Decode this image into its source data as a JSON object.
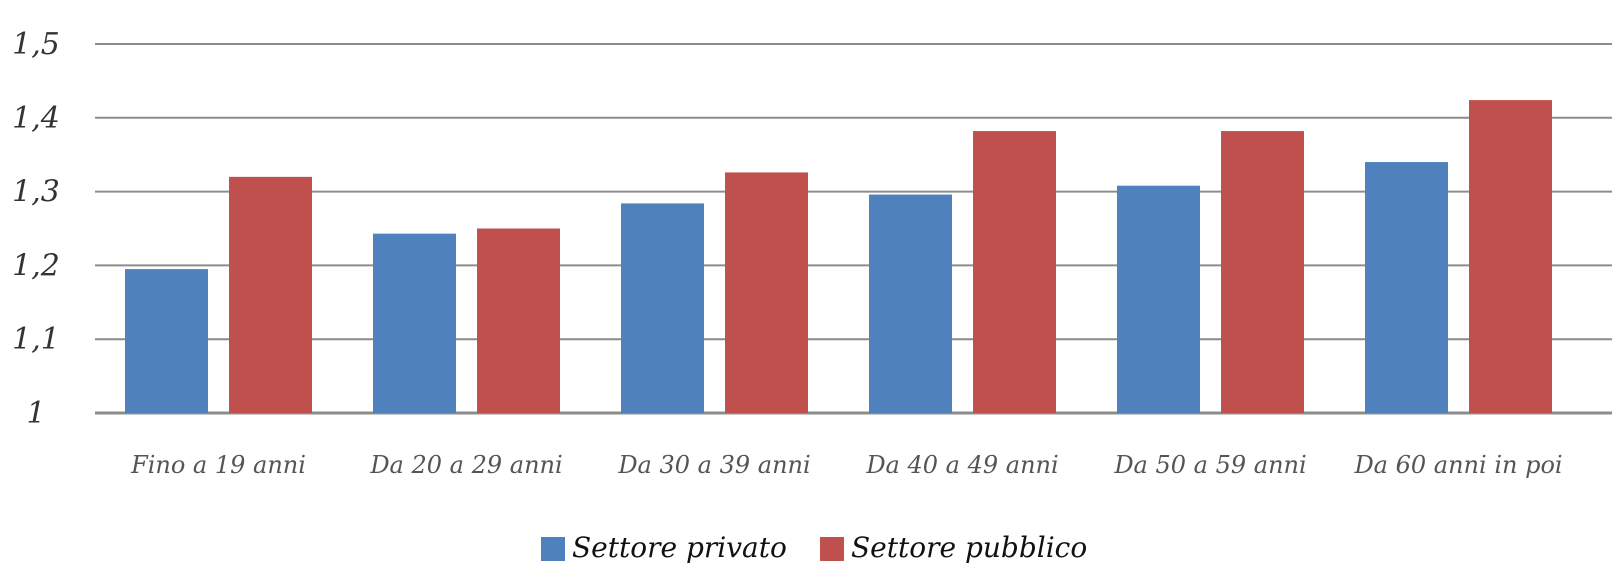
{
  "chart_data": {
    "type": "bar",
    "categories": [
      "Fino a 19 anni",
      "Da 20 a 29 anni",
      "Da 30 a 39 anni",
      "Da 40 a 49 anni",
      "Da 50 a 59 anni",
      "Da 60 anni in poi"
    ],
    "series": [
      {
        "name": "Settore privato",
        "color": "#4f81bd",
        "values": [
          1.195,
          1.243,
          1.284,
          1.296,
          1.308,
          1.34
        ]
      },
      {
        "name": "Settore pubblico",
        "color": "#c0504d",
        "values": [
          1.32,
          1.25,
          1.326,
          1.382,
          1.382,
          1.424
        ]
      }
    ],
    "yticks": [
      "1",
      "1,1",
      "1,2",
      "1,3",
      "1,4",
      "1,5"
    ],
    "ylim": [
      1.0,
      1.5
    ],
    "grid": true,
    "legend_position": "bottom"
  }
}
